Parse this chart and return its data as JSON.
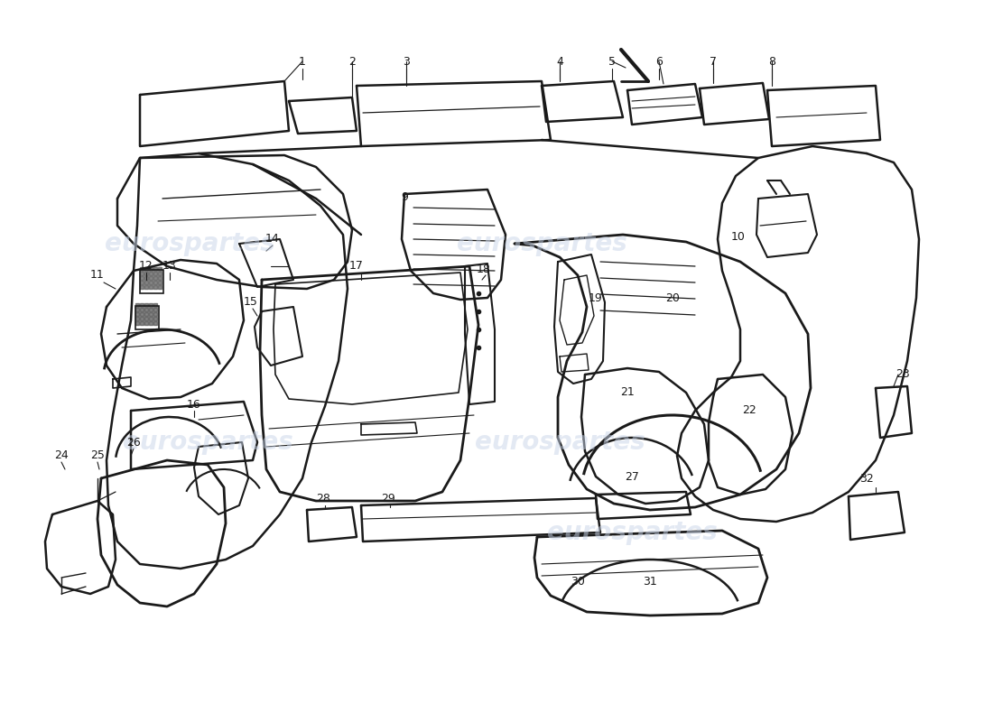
{
  "background_color": "#ffffff",
  "watermark_text": "eurospartes",
  "watermark_color": "#c8d4e8",
  "line_color": "#1a1a1a",
  "figsize": [
    11,
    8
  ],
  "dpi": 100
}
